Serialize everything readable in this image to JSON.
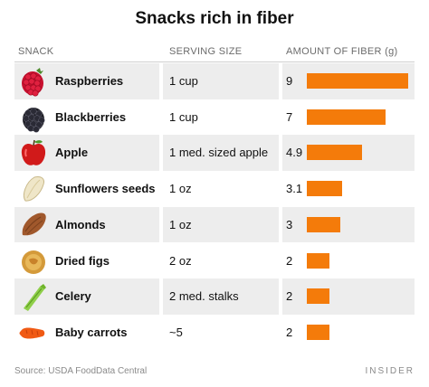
{
  "title": "Snacks rich in fiber",
  "headers": {
    "snack": "SNACK",
    "serving": "SERVING SIZE",
    "fiber": "AMOUNT OF FIBER (g)"
  },
  "source": "Source: USDA FoodData Central",
  "brand": "INSIDER",
  "bar_color": "#f47b0a",
  "chart_data": {
    "type": "bar",
    "orientation": "horizontal",
    "title": "Snacks rich in fiber",
    "xlabel": "AMOUNT OF FIBER (g)",
    "categories": [
      "Raspberries",
      "Blackberries",
      "Apple",
      "Sunflowers seeds",
      "Almonds",
      "Dried figs",
      "Celery",
      "Baby carrots"
    ],
    "values": [
      9,
      7,
      4.9,
      3.1,
      3,
      2,
      2,
      2
    ],
    "value_labels": [
      "9",
      "7",
      "4.9",
      "3.1",
      "3",
      "2",
      "2",
      "2"
    ],
    "xlim": [
      0,
      9
    ]
  },
  "rows": [
    {
      "name": "Raspberries",
      "serving": "1 cup",
      "fiber": "9",
      "icon": "raspberry-icon"
    },
    {
      "name": "Blackberries",
      "serving": "1 cup",
      "fiber": "7",
      "icon": "blackberry-icon"
    },
    {
      "name": "Apple",
      "serving": "1 med. sized apple",
      "fiber": "4.9",
      "icon": "apple-icon"
    },
    {
      "name": "Sunflowers seeds",
      "serving": "1 oz",
      "fiber": "3.1",
      "icon": "sunflower-seed-icon"
    },
    {
      "name": "Almonds",
      "serving": "1 oz",
      "fiber": "3",
      "icon": "almond-icon"
    },
    {
      "name": "Dried figs",
      "serving": "2 oz",
      "fiber": "2",
      "icon": "dried-fig-icon"
    },
    {
      "name": "Celery",
      "serving": "2 med. stalks",
      "fiber": "2",
      "icon": "celery-icon"
    },
    {
      "name": "Baby carrots",
      "serving": "~5",
      "fiber": "2",
      "icon": "carrot-icon"
    }
  ]
}
